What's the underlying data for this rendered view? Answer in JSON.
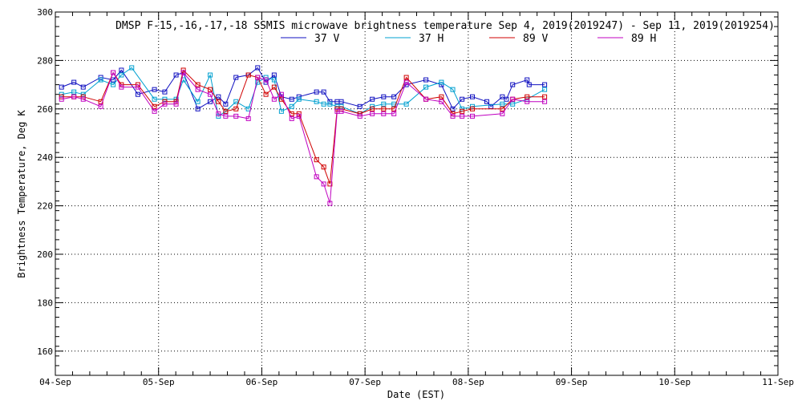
{
  "chart_data": {
    "type": "line",
    "title": "DMSP F-15,-16,-17,-18 SSMIS microwave brightness temperature Sep  4, 2019(2019247) - Sep 11, 2019(2019254)",
    "xlabel": "Date (EST)",
    "ylabel": "Brightness Temperature, Deg K",
    "xlim": [
      0,
      7
    ],
    "ylim": [
      150,
      300
    ],
    "x_ticks": [
      {
        "value": 0,
        "label": "04-Sep"
      },
      {
        "value": 1,
        "label": "05-Sep"
      },
      {
        "value": 2,
        "label": "06-Sep"
      },
      {
        "value": 3,
        "label": "07-Sep"
      },
      {
        "value": 4,
        "label": "08-Sep"
      },
      {
        "value": 5,
        "label": "09-Sep"
      },
      {
        "value": 6,
        "label": "10-Sep"
      },
      {
        "value": 7,
        "label": "11-Sep"
      }
    ],
    "y_ticks": [
      160,
      180,
      200,
      220,
      240,
      260,
      280,
      300
    ],
    "grid": true,
    "x_units": "days since 04-Sep 00:00 EST",
    "series": [
      {
        "name": "37 V",
        "color": "#1010c0",
        "x": [
          0.06,
          0.18,
          0.27,
          0.44,
          0.56,
          0.64,
          0.8,
          0.96,
          1.06,
          1.17,
          1.24,
          1.38,
          1.5,
          1.58,
          1.65,
          1.75,
          1.87,
          1.96,
          2.04,
          2.12,
          2.19,
          2.29,
          2.36,
          2.53,
          2.6,
          2.66,
          2.73,
          2.77,
          2.95,
          3.07,
          3.18,
          3.28,
          3.4,
          3.59,
          3.74,
          3.85,
          3.94,
          4.04,
          4.18,
          4.22,
          4.33,
          4.37,
          4.43,
          4.57,
          4.59,
          4.74
        ],
        "values": [
          269,
          271,
          269,
          273,
          272,
          276,
          266,
          268,
          267,
          274,
          275,
          260,
          263,
          265,
          262,
          273,
          274,
          277,
          271,
          274,
          265,
          264,
          265,
          267,
          267,
          263,
          263,
          263,
          261,
          264,
          265,
          265,
          270,
          272,
          270,
          260,
          264,
          265,
          263,
          261,
          265,
          264,
          270,
          272,
          270,
          270
        ]
      },
      {
        "name": "37 H",
        "color": "#00a0d0",
        "x": [
          0.06,
          0.18,
          0.27,
          0.44,
          0.56,
          0.64,
          0.74,
          0.96,
          1.06,
          1.17,
          1.24,
          1.38,
          1.5,
          1.58,
          1.65,
          1.75,
          1.87,
          1.96,
          2.04,
          2.12,
          2.19,
          2.29,
          2.36,
          2.53,
          2.6,
          2.66,
          2.73,
          2.77,
          2.95,
          3.07,
          3.18,
          3.28,
          3.4,
          3.59,
          3.74,
          3.85,
          3.94,
          4.04,
          4.33,
          4.43,
          4.57,
          4.74
        ],
        "values": [
          266,
          267,
          266,
          272,
          270,
          274,
          277,
          264,
          264,
          264,
          272,
          263,
          274,
          257,
          259,
          263,
          260,
          271,
          273,
          272,
          259,
          261,
          264,
          263,
          262,
          262,
          261,
          261,
          258,
          261,
          262,
          262,
          262,
          269,
          271,
          268,
          260,
          261,
          262,
          262,
          264,
          268
        ]
      },
      {
        "name": "89 V",
        "color": "#d00000",
        "x": [
          0.06,
          0.18,
          0.27,
          0.44,
          0.56,
          0.64,
          0.8,
          0.96,
          1.06,
          1.17,
          1.24,
          1.38,
          1.5,
          1.58,
          1.65,
          1.75,
          1.87,
          1.96,
          2.04,
          2.12,
          2.19,
          2.29,
          2.36,
          2.53,
          2.6,
          2.66,
          2.73,
          2.77,
          2.95,
          3.07,
          3.18,
          3.28,
          3.4,
          3.59,
          3.74,
          3.85,
          3.94,
          4.04,
          4.33,
          4.43,
          4.57,
          4.74
        ],
        "values": [
          265,
          265,
          265,
          263,
          275,
          270,
          270,
          261,
          263,
          263,
          276,
          270,
          268,
          263,
          259,
          260,
          274,
          273,
          266,
          269,
          264,
          258,
          258,
          239,
          236,
          229,
          260,
          260,
          258,
          260,
          260,
          260,
          273,
          264,
          265,
          258,
          259,
          260,
          260,
          264,
          265,
          265
        ]
      },
      {
        "name": "89 H",
        "color": "#c000c0",
        "x": [
          0.06,
          0.18,
          0.27,
          0.44,
          0.56,
          0.64,
          0.8,
          0.96,
          1.06,
          1.17,
          1.24,
          1.38,
          1.5,
          1.58,
          1.65,
          1.75,
          1.87,
          1.96,
          2.04,
          2.12,
          2.19,
          2.29,
          2.36,
          2.53,
          2.6,
          2.66,
          2.73,
          2.77,
          2.95,
          3.07,
          3.18,
          3.28,
          3.4,
          3.59,
          3.74,
          3.85,
          3.94,
          4.04,
          4.33,
          4.43,
          4.57,
          4.74
        ],
        "values": [
          264,
          265,
          264,
          261,
          275,
          269,
          269,
          259,
          262,
          262,
          275,
          268,
          266,
          258,
          257,
          257,
          256,
          273,
          272,
          264,
          266,
          256,
          257,
          232,
          229,
          221,
          259,
          259,
          257,
          258,
          258,
          258,
          271,
          264,
          263,
          257,
          257,
          257,
          258,
          264,
          263,
          263
        ]
      }
    ]
  }
}
